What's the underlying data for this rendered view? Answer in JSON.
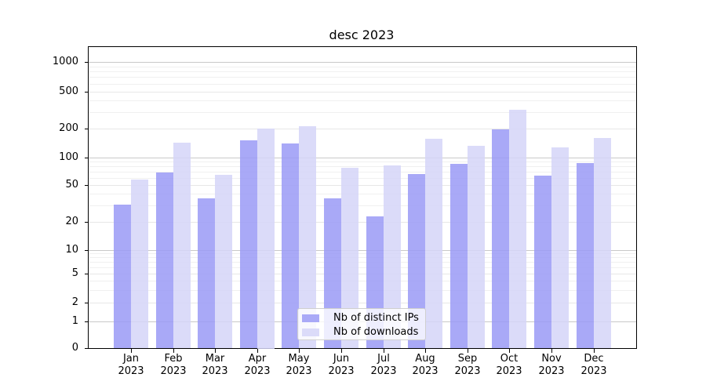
{
  "chart_data": {
    "type": "bar",
    "title": "desc 2023",
    "months": [
      "Jan",
      "Feb",
      "Mar",
      "Apr",
      "May",
      "Jun",
      "Jul",
      "Aug",
      "Sep",
      "Oct",
      "Nov",
      "Dec"
    ],
    "year": "2023",
    "series": [
      {
        "name": "Nb of distinct IPs",
        "color": "#a9a9f7",
        "values": [
          31,
          69,
          36,
          149,
          140,
          36,
          23,
          66,
          84,
          196,
          63,
          86
        ]
      },
      {
        "name": "Nb of downloads",
        "color": "#dbdbf9",
        "values": [
          57,
          141,
          65,
          200,
          212,
          77,
          81,
          156,
          130,
          315,
          126,
          158
        ]
      }
    ],
    "yscale": "symlog",
    "ylim": [
      0,
      1500
    ],
    "yticks": [
      0,
      1,
      2,
      5,
      10,
      20,
      50,
      100,
      200,
      500,
      1000
    ],
    "grid": true,
    "legend_position": "lower center"
  },
  "colors": {
    "grid_major": "#c9c9c9",
    "grid_mid": "#e7e7e7",
    "grid_minor": "#f0f0f0",
    "axis": "#000000",
    "legend_border": "#cfcfcf"
  }
}
